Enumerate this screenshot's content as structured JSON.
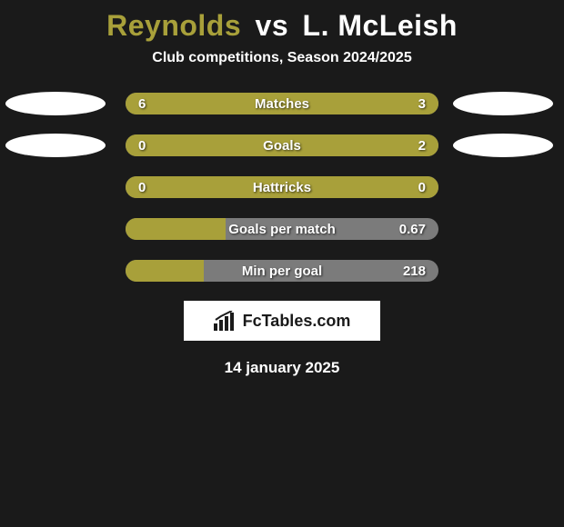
{
  "header": {
    "player1": "Reynolds",
    "vs": "vs",
    "player2": "L. McLeish",
    "subtitle": "Club competitions, Season 2024/2025"
  },
  "colors": {
    "left_fill": "#a8a03a",
    "right_fill": "#a8a03a",
    "track": "#7b7b7b",
    "background": "#1a1a1a",
    "oval": "#ffffff"
  },
  "rows": [
    {
      "metric": "Matches",
      "left_value": "6",
      "right_value": "3",
      "left_pct": 66.7,
      "right_pct": 33.3,
      "show_left_oval": true,
      "show_right_oval": true
    },
    {
      "metric": "Goals",
      "left_value": "0",
      "right_value": "2",
      "left_pct": 20,
      "right_pct": 80,
      "show_left_oval": true,
      "show_right_oval": true
    },
    {
      "metric": "Hattricks",
      "left_value": "0",
      "right_value": "0",
      "left_pct": 100,
      "right_pct": 0,
      "show_left_oval": false,
      "show_right_oval": false
    },
    {
      "metric": "Goals per match",
      "left_value": "",
      "right_value": "0.67",
      "left_pct": 32,
      "right_pct": 0,
      "show_left_oval": false,
      "show_right_oval": false
    },
    {
      "metric": "Min per goal",
      "left_value": "",
      "right_value": "218",
      "left_pct": 25,
      "right_pct": 0,
      "show_left_oval": false,
      "show_right_oval": false
    }
  ],
  "logo": {
    "text": "FcTables.com"
  },
  "date": "14 january 2025",
  "fonts": {
    "title_size": 32,
    "subtitle_size": 16,
    "bar_label_size": 15,
    "date_size": 17
  }
}
